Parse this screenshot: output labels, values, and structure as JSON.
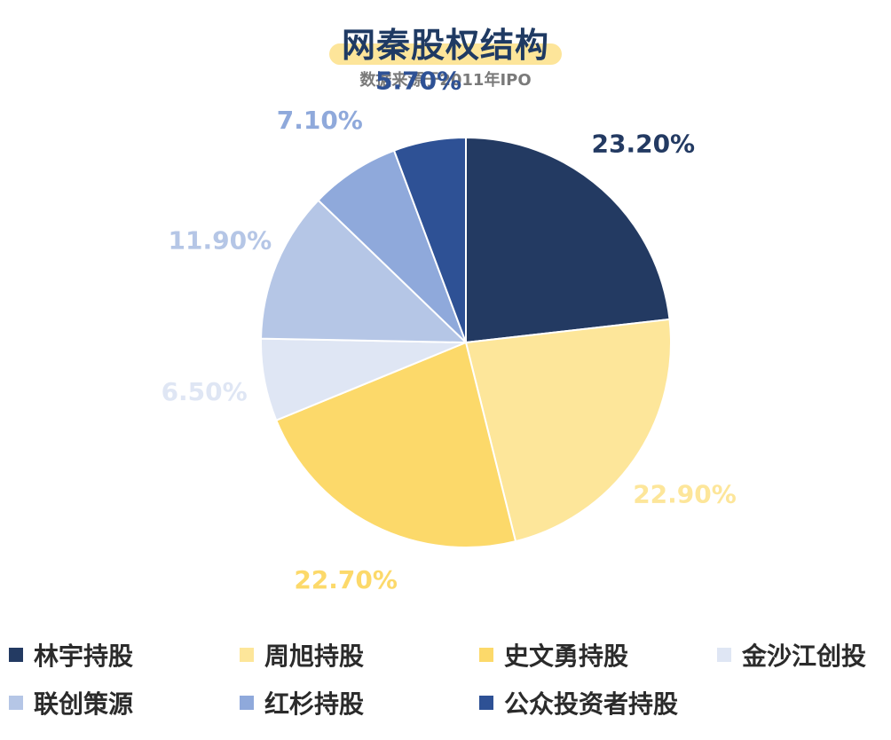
{
  "chart_data": {
    "type": "pie",
    "title": "网秦股权结构",
    "subtitle": "数据来源于2011年IPO",
    "legend_position": "bottom",
    "slices": [
      {
        "name": "林宇持股",
        "value": 23.2,
        "label": "23.20%",
        "color": "#233a62",
        "label_color": "#233a62"
      },
      {
        "name": "周旭持股",
        "value": 22.9,
        "label": "22.90%",
        "color": "#fde69a",
        "label_color": "#fde69a"
      },
      {
        "name": "史文勇持股",
        "value": 22.7,
        "label": "22.70%",
        "color": "#fcd96a",
        "label_color": "#fcd96a"
      },
      {
        "name": "金沙江创投",
        "value": 6.5,
        "label": "6.50%",
        "color": "#dfe6f4",
        "label_color": "#dfe6f4"
      },
      {
        "name": "联创策源",
        "value": 11.9,
        "label": "11.90%",
        "color": "#b5c6e6",
        "label_color": "#b5c6e6"
      },
      {
        "name": "红杉持股",
        "value": 7.1,
        "label": "7.10%",
        "color": "#8fa9db",
        "label_color": "#8fa9db"
      },
      {
        "name": "公众投资者持股",
        "value": 5.7,
        "label": "5.70%",
        "color": "#2e5195",
        "label_color": "#2e5195"
      }
    ]
  }
}
